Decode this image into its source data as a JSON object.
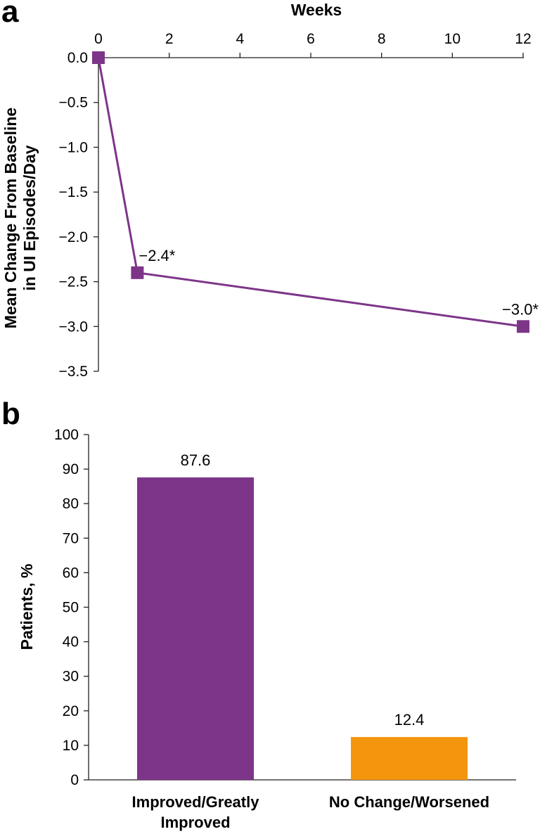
{
  "chart_data": [
    {
      "panel": "a",
      "type": "line",
      "xlabel": "Weeks",
      "ylabel_lines": [
        "Mean Change From Baseline",
        "in UI Episodes/Day"
      ],
      "xlim": [
        0,
        12
      ],
      "ylim": [
        -3.5,
        0
      ],
      "xticks": [
        0,
        2,
        4,
        6,
        8,
        10,
        12
      ],
      "yticks": [
        0.0,
        -0.5,
        -1.0,
        -1.5,
        -2.0,
        -2.5,
        -3.0,
        -3.5
      ],
      "ytick_labels": [
        "0.0",
        "−0.5",
        "−1.0",
        "−1.5",
        "−2.0",
        "−2.5",
        "−3.0",
        "−3.5"
      ],
      "x_axis_position": "top",
      "grid": false,
      "series": [
        {
          "color": "#7d3589",
          "x": [
            0,
            1.1,
            12
          ],
          "y": [
            0.0,
            -2.4,
            -3.0
          ],
          "point_labels": [
            "",
            "−2.4*",
            "−3.0*"
          ]
        }
      ]
    },
    {
      "panel": "b",
      "type": "bar",
      "ylabel": "Patients, %",
      "ylim": [
        0,
        100
      ],
      "yticks": [
        0,
        10,
        20,
        30,
        40,
        50,
        60,
        70,
        80,
        90,
        100
      ],
      "grid": false,
      "categories": [
        [
          "Improved/Greatly",
          "Improved"
        ],
        [
          "No Change/Worsened"
        ]
      ],
      "values": [
        87.6,
        12.4
      ],
      "value_labels": [
        "87.6",
        "12.4"
      ],
      "colors": [
        "#7d3589",
        "#f3960e"
      ]
    }
  ]
}
